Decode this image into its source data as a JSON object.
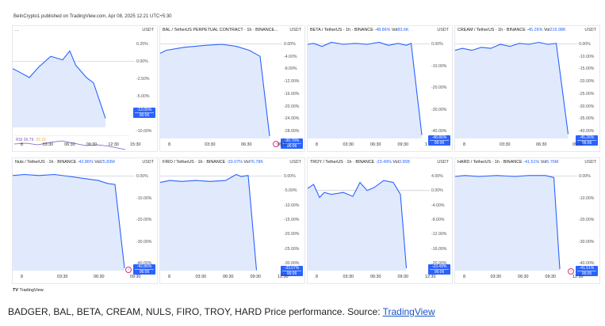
{
  "header": "BeInCrypto1 published on TradingView.com, Apr 08, 2025 12:21 UTC+5:30",
  "tv_logo": "TradingView",
  "caption": {
    "text": "BADGER, BAL, BETA, CREAM, NULS, FIRO, TROY, HARD Price performance. Source: ",
    "link": "TradingView"
  },
  "colors": {
    "accent": "#2962ff",
    "fill": "#dce6fb",
    "rsi": "#7e57c2"
  },
  "panels": [
    {
      "id": "badger",
      "title": "...",
      "chg": "",
      "vol_label": "",
      "vol": "",
      "usdt": "USDT",
      "ticks": [
        "0.25%",
        "0.00%",
        "-2.50%",
        "-5.00%",
        "-7.50%",
        "-10.00%"
      ],
      "badge": [
        "-13.05%",
        "06:06"
      ],
      "x_labels": [
        "8",
        "03:30",
        "06:30",
        "09:30",
        "12:30",
        "15:30"
      ],
      "rsi": {
        "label": "RSI",
        "v1": "26.79",
        "v2": "37.21"
      }
    },
    {
      "id": "bal",
      "title": "BAL / TetherUS PERPETUAL CONTRACT · 1h · BINANCE...",
      "chg": "",
      "vol_label": "",
      "vol": "",
      "usdt": "USDT",
      "ticks": [
        "0.00%",
        "-4.00%",
        "-8.00%",
        "-12.00%",
        "-16.00%",
        "-20.00%",
        "-24.00%",
        "-28.00%"
      ],
      "badge": [
        "-30.78%",
        "06:06"
      ],
      "x_labels": [
        "8",
        "03:30",
        "06:30",
        "09:30"
      ]
    },
    {
      "id": "beta",
      "title": "BETA / TetherUS · 1h · BINANCE",
      "chg": "-48.86%",
      "vol_label": "Vol",
      "vol": "83.6K",
      "usdt": "USDT",
      "ticks": [
        "0.00%",
        "-10.00%",
        "-20.00%",
        "-30.00%",
        "-40.00%"
      ],
      "badge": [
        "-48.86%",
        "06:06"
      ],
      "x_labels": [
        "8",
        "03:30",
        "06:30",
        "09:30",
        "1"
      ]
    },
    {
      "id": "cream",
      "title": "CREAM / TetherUS · 1h · BINANCE",
      "chg": "-45.26%",
      "vol_label": "Vol",
      "vol": "215.98K",
      "usdt": "USDT",
      "ticks": [
        "0.00%",
        "-10.00%",
        "-15.00%",
        "-20.00%",
        "-25.00%",
        "-30.00%",
        "-35.00%",
        "-40.00%"
      ],
      "badge": [
        "-45.26%",
        "06:06"
      ],
      "x_labels": [
        "8",
        "03:30",
        "06:30",
        "09:30"
      ]
    },
    {
      "id": "nuls",
      "title": "Nuls / TetherUS · 1h · BINANCE",
      "chg": "-42.86%",
      "vol_label": "Vol",
      "vol": "25.83M",
      "usdt": "USDT",
      "ticks": [
        "0.00%",
        "-10.00%",
        "-20.00%",
        "-30.00%",
        "-40.00%"
      ],
      "badge": [
        "-42.86%",
        "06:06"
      ],
      "x_labels": [
        "8",
        "03:30",
        "06:30",
        "09:30"
      ]
    },
    {
      "id": "firo",
      "title": "FIRO / TetherUS · 1h · BINANCE",
      "chg": "-33.07%",
      "vol_label": "Vol",
      "vol": "76.78K",
      "usdt": "USDT",
      "ticks": [
        "0.00%",
        "-5.00%",
        "-10.00%",
        "-15.00%",
        "-20.00%",
        "-25.00%",
        "-30.00%"
      ],
      "badge": [
        "-33.07%",
        "06:06"
      ],
      "x_labels": [
        "8",
        "03:30",
        "06:30",
        "09:30",
        "12:30"
      ]
    },
    {
      "id": "troy",
      "title": "TROY / TetherUS · 1h · BINANCE",
      "chg": "-23.49%",
      "vol_label": "Vol",
      "vol": "3.95B",
      "usdt": "USDT",
      "ticks": [
        "4.00%",
        "0.00%",
        "-4.00%",
        "-8.00%",
        "-12.00%",
        "-16.00%",
        "-20.00%"
      ],
      "badge": [
        "-23.49%",
        "06:06"
      ],
      "x_labels": [
        "8",
        "03:30",
        "06:30",
        "09:30",
        "12:30"
      ]
    },
    {
      "id": "hard",
      "title": "HARD / TetherUS · 1h · BINANCE",
      "chg": "-41.51%",
      "vol_label": "Vol",
      "vol": "5.76M",
      "usdt": "USDT",
      "ticks": [
        "0.00%",
        "-10.00%",
        "-20.00%",
        "-30.00%",
        "-40.00%"
      ],
      "badge": [
        "-41.51%",
        "06:05"
      ],
      "x_labels": [
        "8",
        "03:30",
        "06:30",
        "09:30",
        "12:30"
      ]
    }
  ]
}
